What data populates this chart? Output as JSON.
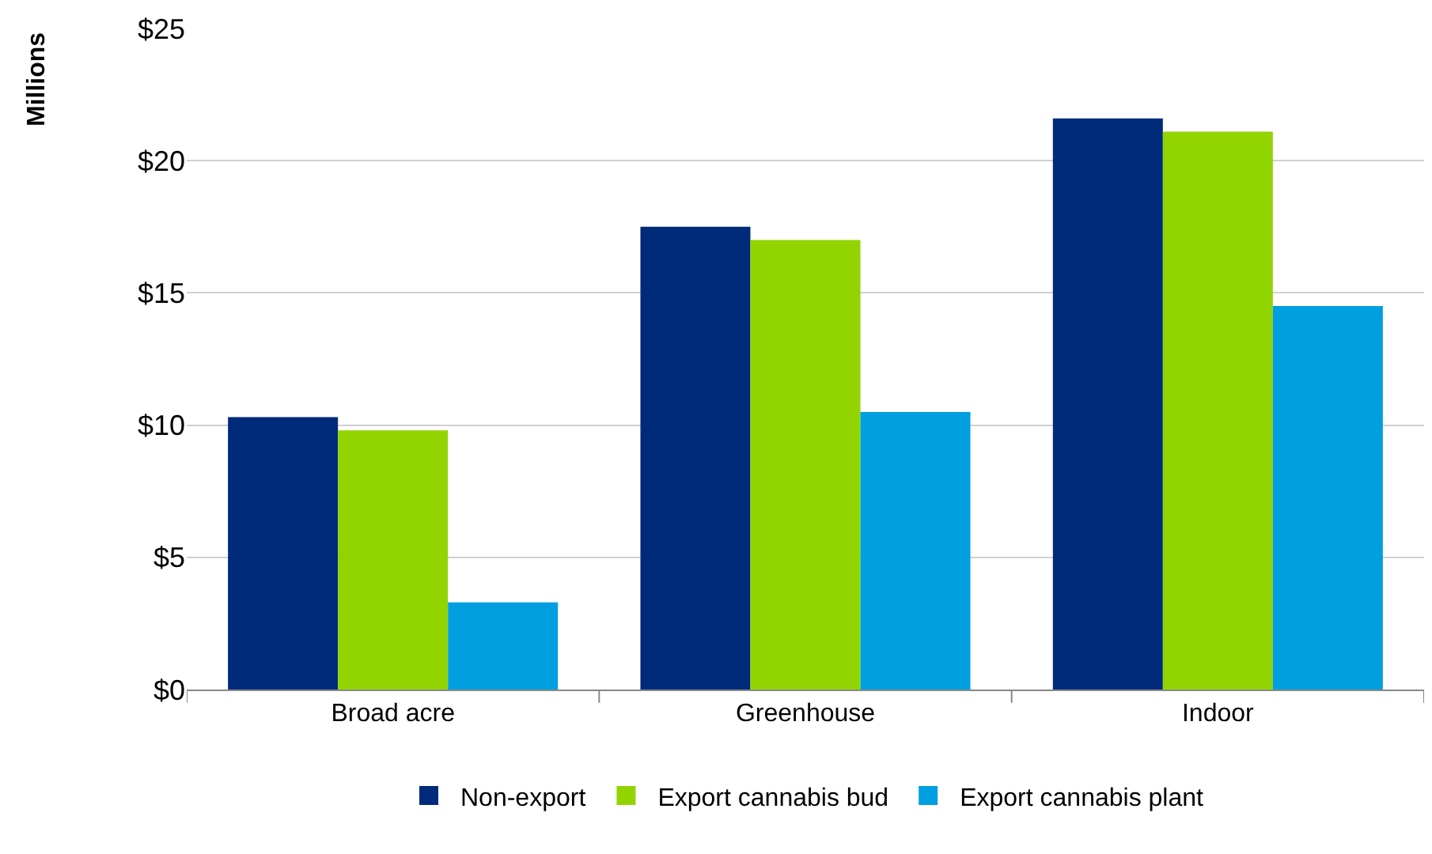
{
  "chart_data": {
    "type": "bar",
    "ylabel": "Millions",
    "categories": [
      "Broad acre",
      "Greenhouse",
      "Indoor"
    ],
    "series": [
      {
        "name": "Non-export",
        "color": "#002b7a",
        "values": [
          10.3,
          17.5,
          21.6
        ]
      },
      {
        "name": "Export cannabis bud",
        "color": "#92d400",
        "values": [
          9.8,
          17.0,
          21.1
        ]
      },
      {
        "name": "Export cannabis plant",
        "color": "#009fdf",
        "values": [
          3.3,
          10.5,
          14.5
        ]
      }
    ],
    "ylim": [
      0,
      25
    ],
    "yticks": [
      {
        "value": 0,
        "label": "$0"
      },
      {
        "value": 5,
        "label": "$5"
      },
      {
        "value": 10,
        "label": "$10"
      },
      {
        "value": 15,
        "label": "$15"
      },
      {
        "value": 20,
        "label": "$20"
      },
      {
        "value": 25,
        "label": "$25"
      }
    ],
    "grid": "y",
    "legend": "bottom"
  }
}
